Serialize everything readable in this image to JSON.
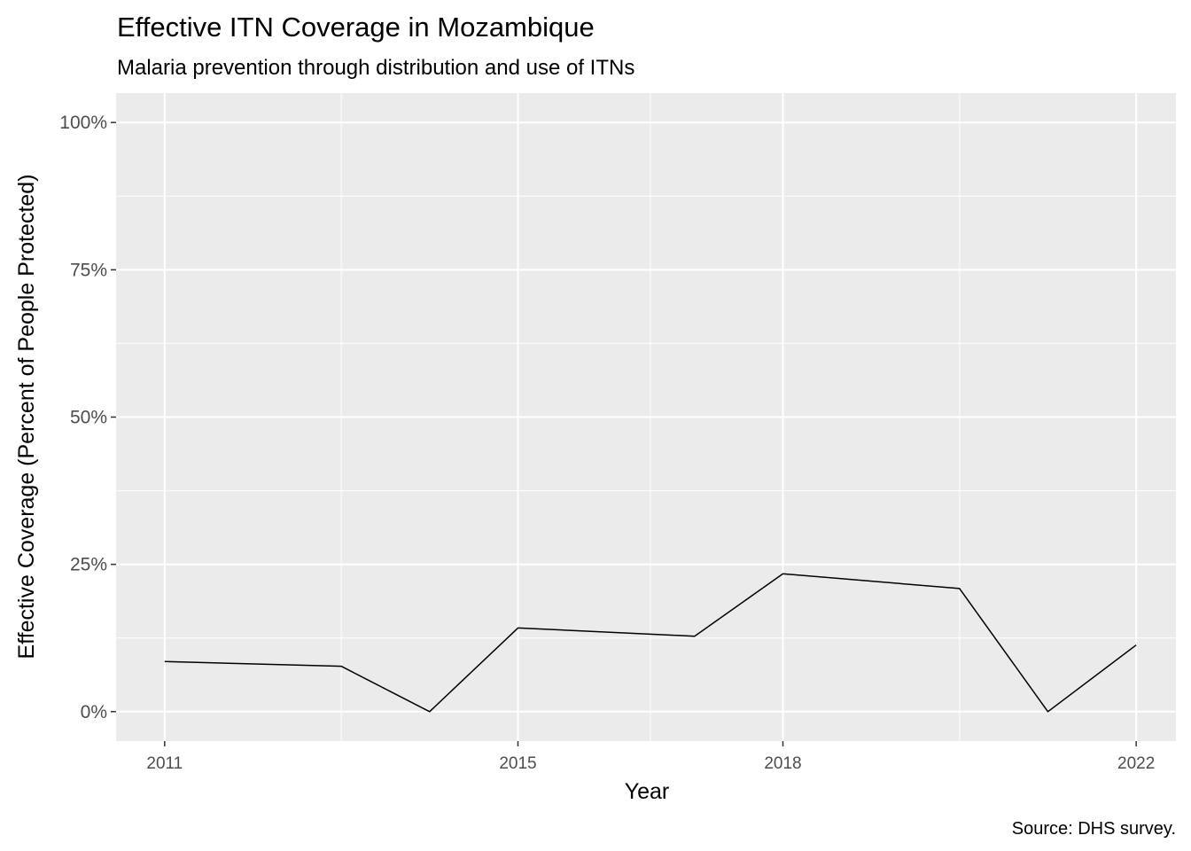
{
  "chart_data": {
    "type": "line",
    "title": "Effective ITN Coverage in Mozambique",
    "subtitle": "Malaria prevention through distribution and use of ITNs",
    "xlabel": "Year",
    "ylabel": "Effective Coverage (Percent of People Protected)",
    "caption": "Source: DHS survey.",
    "x": [
      2011,
      2013,
      2014,
      2015,
      2017,
      2018,
      2020,
      2021,
      2022
    ],
    "y": [
      8.5,
      7.7,
      0,
      14.2,
      12.8,
      23.4,
      20.9,
      0,
      11.3
    ],
    "xlim": [
      2010.45,
      2022.45
    ],
    "ylim": [
      -5,
      105
    ],
    "x_ticks": [
      2011,
      2015,
      2018,
      2022
    ],
    "x_tick_labels": [
      "2011",
      "2015",
      "2018",
      "2022"
    ],
    "x_minor_breaks": [
      2013,
      2016.5,
      2020
    ],
    "y_ticks": [
      0,
      25,
      50,
      75,
      100
    ],
    "y_tick_labels": [
      "0%",
      "25%",
      "50%",
      "75%",
      "100%"
    ],
    "grid": true,
    "line_color": "#000000",
    "panel_color": "#ebebeb",
    "grid_color": "#ffffff"
  }
}
